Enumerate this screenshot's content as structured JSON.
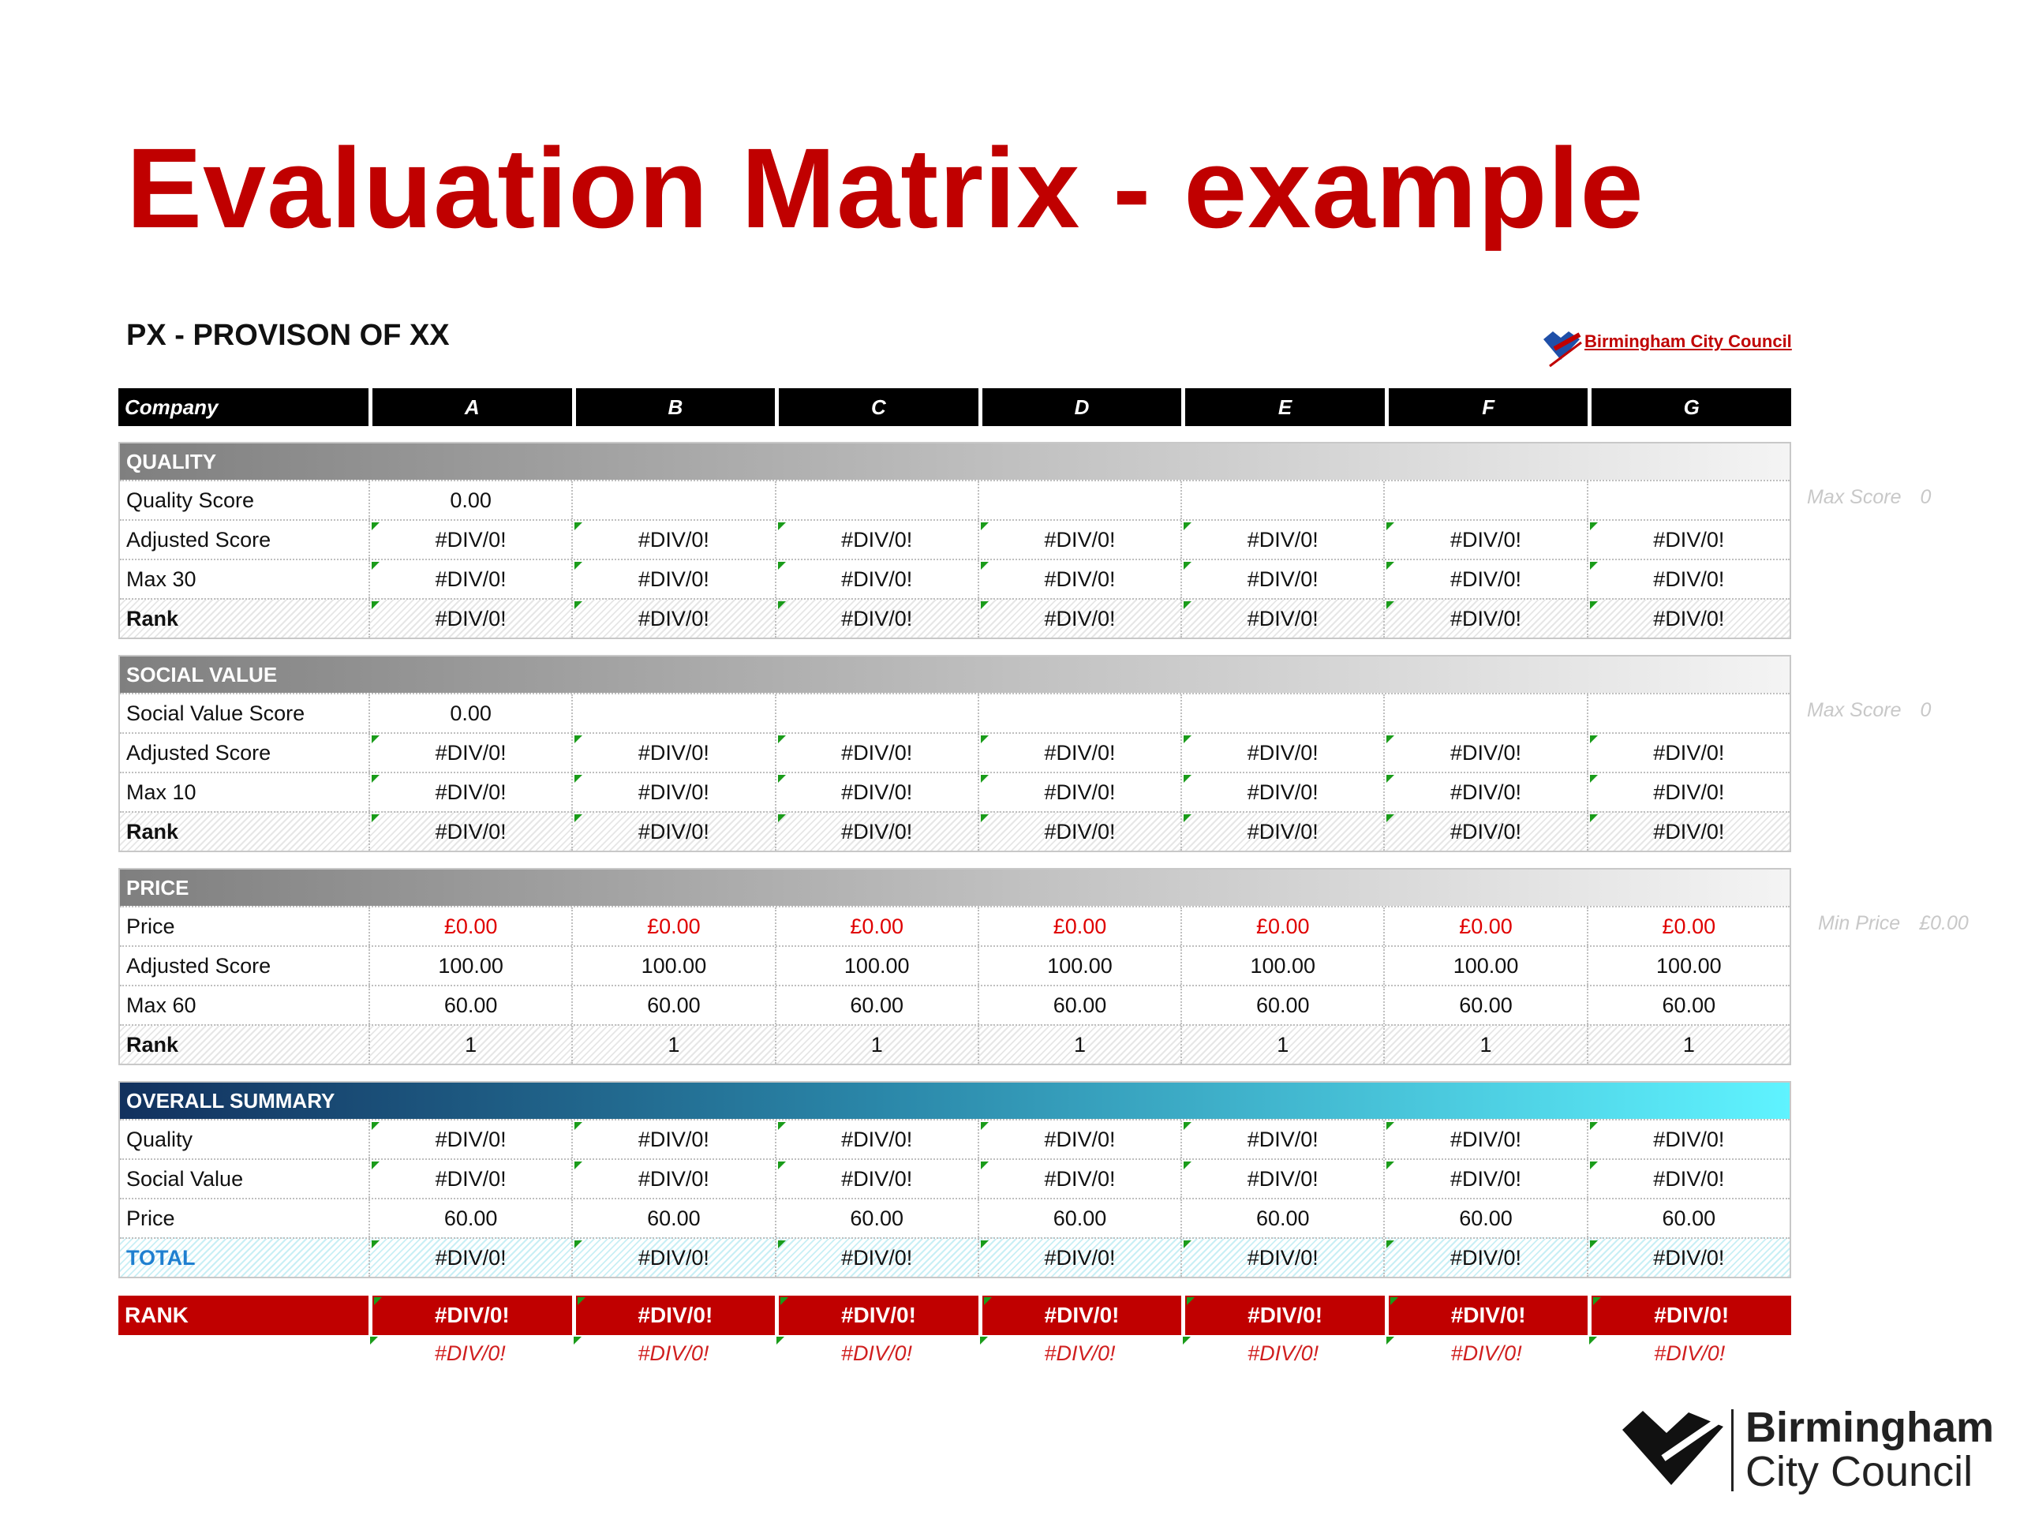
{
  "slide_title": "Evaluation Matrix - example",
  "sheet_title": "PX - PROVISON OF XX",
  "logo_text": "Birmingham City Council",
  "logo_line1": "Birmingham",
  "logo_line2": "City Council",
  "header": {
    "label": "Company",
    "companies": [
      "A",
      "B",
      "C",
      "D",
      "E",
      "F",
      "G"
    ]
  },
  "sections": [
    {
      "title": "QUALITY",
      "note_label": "Max Score",
      "note_value": "0",
      "rows": [
        {
          "label": "Quality Score",
          "values": [
            "0.00",
            "",
            "",
            "",
            "",
            "",
            ""
          ]
        },
        {
          "label": "Adjusted Score",
          "values": [
            "#DIV/0!",
            "#DIV/0!",
            "#DIV/0!",
            "#DIV/0!",
            "#DIV/0!",
            "#DIV/0!",
            "#DIV/0!"
          ]
        },
        {
          "label": "Max 30",
          "values": [
            "#DIV/0!",
            "#DIV/0!",
            "#DIV/0!",
            "#DIV/0!",
            "#DIV/0!",
            "#DIV/0!",
            "#DIV/0!"
          ]
        },
        {
          "label": "Rank",
          "values": [
            "#DIV/0!",
            "#DIV/0!",
            "#DIV/0!",
            "#DIV/0!",
            "#DIV/0!",
            "#DIV/0!",
            "#DIV/0!"
          ]
        }
      ]
    },
    {
      "title": "SOCIAL VALUE",
      "note_label": "Max Score",
      "note_value": "0",
      "rows": [
        {
          "label": "Social Value Score",
          "values": [
            "0.00",
            "",
            "",
            "",
            "",
            "",
            ""
          ]
        },
        {
          "label": "Adjusted Score",
          "values": [
            "#DIV/0!",
            "#DIV/0!",
            "#DIV/0!",
            "#DIV/0!",
            "#DIV/0!",
            "#DIV/0!",
            "#DIV/0!"
          ]
        },
        {
          "label": "Max 10",
          "values": [
            "#DIV/0!",
            "#DIV/0!",
            "#DIV/0!",
            "#DIV/0!",
            "#DIV/0!",
            "#DIV/0!",
            "#DIV/0!"
          ]
        },
        {
          "label": "Rank",
          "values": [
            "#DIV/0!",
            "#DIV/0!",
            "#DIV/0!",
            "#DIV/0!",
            "#DIV/0!",
            "#DIV/0!",
            "#DIV/0!"
          ]
        }
      ]
    },
    {
      "title": "PRICE",
      "note_label": "Min Price",
      "note_value": "£0.00",
      "rows": [
        {
          "label": "Price",
          "values": [
            "£0.00",
            "£0.00",
            "£0.00",
            "£0.00",
            "£0.00",
            "£0.00",
            "£0.00"
          ]
        },
        {
          "label": "Adjusted Score",
          "values": [
            "100.00",
            "100.00",
            "100.00",
            "100.00",
            "100.00",
            "100.00",
            "100.00"
          ]
        },
        {
          "label": "Max 60",
          "values": [
            "60.00",
            "60.00",
            "60.00",
            "60.00",
            "60.00",
            "60.00",
            "60.00"
          ]
        },
        {
          "label": "Rank",
          "values": [
            "1",
            "1",
            "1",
            "1",
            "1",
            "1",
            "1"
          ]
        }
      ]
    },
    {
      "title": "OVERALL SUMMARY",
      "rows": [
        {
          "label": "Quality",
          "values": [
            "#DIV/0!",
            "#DIV/0!",
            "#DIV/0!",
            "#DIV/0!",
            "#DIV/0!",
            "#DIV/0!",
            "#DIV/0!"
          ]
        },
        {
          "label": "Social Value",
          "values": [
            "#DIV/0!",
            "#DIV/0!",
            "#DIV/0!",
            "#DIV/0!",
            "#DIV/0!",
            "#DIV/0!",
            "#DIV/0!"
          ]
        },
        {
          "label": "Price",
          "values": [
            "60.00",
            "60.00",
            "60.00",
            "60.00",
            "60.00",
            "60.00",
            "60.00"
          ]
        },
        {
          "label": "TOTAL",
          "values": [
            "#DIV/0!",
            "#DIV/0!",
            "#DIV/0!",
            "#DIV/0!",
            "#DIV/0!",
            "#DIV/0!",
            "#DIV/0!"
          ]
        }
      ]
    }
  ],
  "final_rank": {
    "label": "RANK",
    "values": [
      "#DIV/0!",
      "#DIV/0!",
      "#DIV/0!",
      "#DIV/0!",
      "#DIV/0!",
      "#DIV/0!",
      "#DIV/0!"
    ],
    "sub_values": [
      "#DIV/0!",
      "#DIV/0!",
      "#DIV/0!",
      "#DIV/0!",
      "#DIV/0!",
      "#DIV/0!",
      "#DIV/0!"
    ]
  },
  "colors": {
    "accent": "#c00000",
    "flag": "#1a9c1a",
    "total_label": "#1f7fd0"
  }
}
